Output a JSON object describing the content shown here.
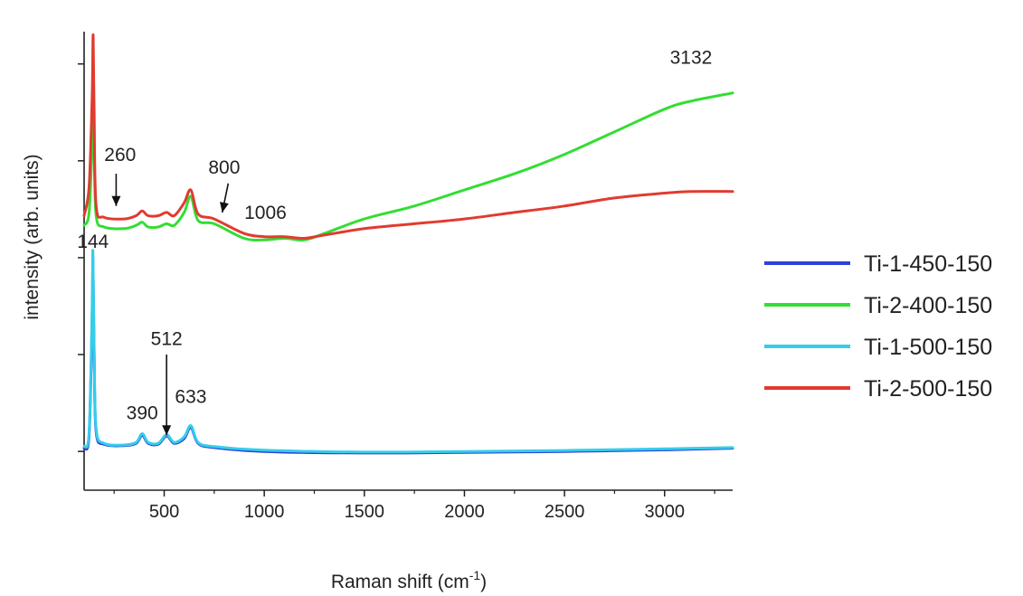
{
  "chart_data": {
    "type": "line",
    "title": "",
    "xlabel": "Raman shift (cm",
    "xlabel_sup": "-1",
    "xlabel_close": ")",
    "ylabel": "intensity (arb. units)",
    "xlim": [
      100,
      3340
    ],
    "ylim": [
      -0.12,
      1.3
    ],
    "y_tick_labels": "none",
    "grid": false,
    "legend_position": "right",
    "x_ticks": [
      500,
      1000,
      1500,
      2000,
      2500,
      3000
    ],
    "x_tick_labels": [
      "500",
      "1000",
      "1500",
      "2000",
      "2500",
      "3000"
    ],
    "y_ticks": [
      0,
      0.3,
      0.6,
      0.9,
      1.2
    ],
    "series": [
      {
        "name": "Ti-1-450-150",
        "color": "#2f3fd8",
        "x": [
          100,
          125,
          140,
          144,
          150,
          160,
          200,
          300,
          360,
          390,
          420,
          470,
          512,
          550,
          600,
          633,
          670,
          750,
          1000,
          1500,
          2000,
          2500,
          3000,
          3340
        ],
        "y": [
          0.01,
          0.05,
          0.42,
          0.6,
          0.3,
          0.06,
          0.022,
          0.018,
          0.025,
          0.05,
          0.025,
          0.022,
          0.048,
          0.025,
          0.04,
          0.075,
          0.025,
          0.012,
          0.0,
          -0.005,
          -0.003,
          0.0,
          0.005,
          0.01
        ]
      },
      {
        "name": "Ti-2-400-150",
        "color": "#33dd33",
        "x": [
          100,
          125,
          140,
          145,
          150,
          160,
          200,
          300,
          360,
          390,
          420,
          470,
          512,
          550,
          600,
          633,
          670,
          750,
          900,
          1000,
          1100,
          1200,
          1300,
          1500,
          1750,
          2000,
          2250,
          2500,
          2750,
          3000,
          3132,
          3340
        ],
        "y": [
          0.7,
          0.74,
          0.96,
          1.12,
          0.95,
          0.73,
          0.695,
          0.69,
          0.7,
          0.71,
          0.695,
          0.695,
          0.705,
          0.7,
          0.74,
          0.79,
          0.715,
          0.705,
          0.66,
          0.655,
          0.66,
          0.655,
          0.675,
          0.72,
          0.76,
          0.81,
          0.86,
          0.92,
          0.99,
          1.06,
          1.085,
          1.11
        ]
      },
      {
        "name": "Ti-1-500-150",
        "color": "#35cdea",
        "x": [
          100,
          125,
          140,
          144,
          150,
          160,
          200,
          300,
          360,
          390,
          420,
          470,
          512,
          550,
          600,
          633,
          670,
          750,
          1000,
          1500,
          2000,
          2500,
          3000,
          3340
        ],
        "y": [
          0.015,
          0.06,
          0.45,
          0.62,
          0.32,
          0.07,
          0.025,
          0.02,
          0.028,
          0.055,
          0.028,
          0.025,
          0.052,
          0.028,
          0.045,
          0.08,
          0.028,
          0.015,
          0.004,
          -0.002,
          0.0,
          0.003,
          0.008,
          0.012
        ]
      },
      {
        "name": "Ti-2-500-150",
        "color": "#e13b2f",
        "x": [
          100,
          125,
          140,
          145,
          150,
          160,
          200,
          300,
          360,
          390,
          420,
          470,
          512,
          550,
          600,
          633,
          670,
          750,
          900,
          1000,
          1100,
          1200,
          1300,
          1500,
          1750,
          2000,
          2250,
          2500,
          2750,
          3000,
          3132,
          3340
        ],
        "y": [
          0.73,
          0.82,
          1.1,
          1.29,
          1.05,
          0.76,
          0.725,
          0.72,
          0.73,
          0.745,
          0.73,
          0.73,
          0.74,
          0.73,
          0.77,
          0.81,
          0.735,
          0.72,
          0.675,
          0.665,
          0.665,
          0.66,
          0.67,
          0.69,
          0.705,
          0.72,
          0.74,
          0.76,
          0.785,
          0.8,
          0.805,
          0.805
        ]
      }
    ],
    "annotations": [
      {
        "text": "144",
        "x": 144,
        "y": 0.63
      },
      {
        "text": "260",
        "x": 280,
        "y": 0.9
      },
      {
        "text": "800",
        "x": 800,
        "y": 0.86
      },
      {
        "text": "1006",
        "x": 1006,
        "y": 0.72
      },
      {
        "text": "3132",
        "x": 3132,
        "y": 1.2
      },
      {
        "text": "390",
        "x": 390,
        "y": 0.1
      },
      {
        "text": "512",
        "x": 512,
        "y": 0.33
      },
      {
        "text": "633",
        "x": 633,
        "y": 0.15
      }
    ],
    "arrows": [
      {
        "label": "260",
        "from": [
          260,
          0.86
        ],
        "to": [
          260,
          0.76
        ]
      },
      {
        "label": "800",
        "from": [
          820,
          0.83
        ],
        "to": [
          790,
          0.74
        ]
      },
      {
        "label": "512",
        "from": [
          512,
          0.3
        ],
        "to": [
          512,
          0.05
        ]
      }
    ]
  }
}
